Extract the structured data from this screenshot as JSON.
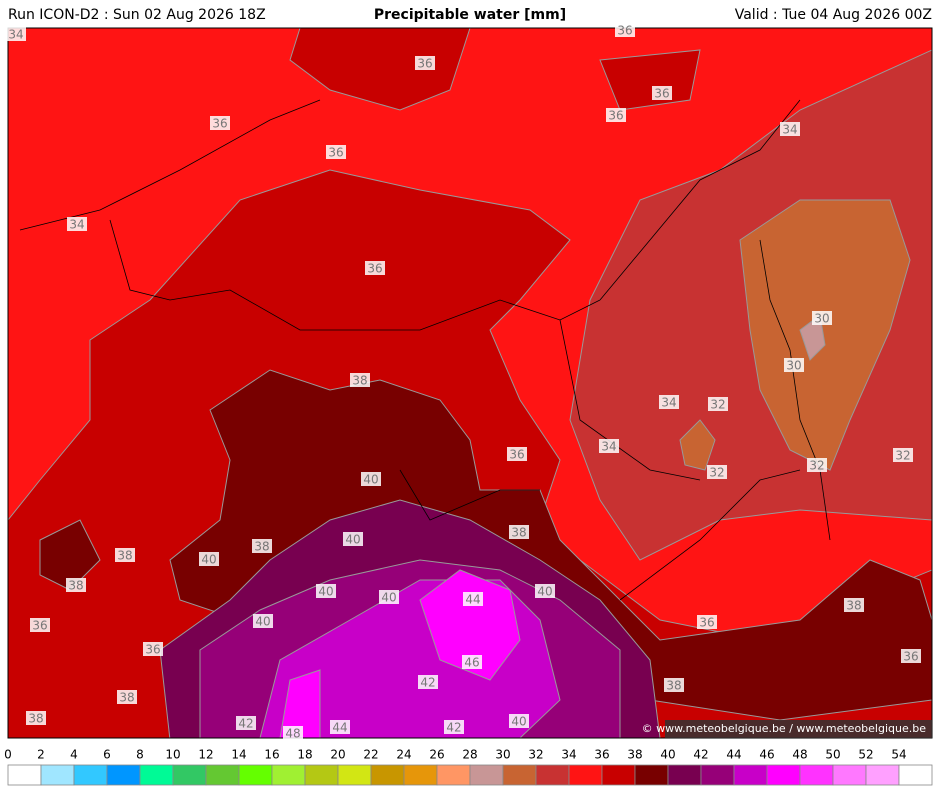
{
  "header": {
    "left": "Run ICON-D2 : Sun 02 Aug 2026 18Z",
    "title": "Precipitable water [mm]",
    "right": "Valid : Tue 04 Aug 2026 00Z"
  },
  "map": {
    "contour_labels": [
      "34",
      "36",
      "36",
      "36",
      "36",
      "36",
      "34",
      "36",
      "34",
      "36",
      "30",
      "30",
      "38",
      "34",
      "32",
      "34",
      "36",
      "32",
      "32",
      "32",
      "40",
      "38",
      "40",
      "38",
      "38",
      "40",
      "38",
      "40",
      "40",
      "40",
      "44",
      "38",
      "36",
      "40",
      "36",
      "36",
      "46",
      "36",
      "42",
      "38",
      "38",
      "38",
      "42",
      "44",
      "42",
      "40",
      "48"
    ],
    "credit": "© www.meteobelgique.be / www.meteobelgique.be"
  },
  "colorbar": {
    "ticks": [
      0,
      2,
      4,
      6,
      8,
      10,
      12,
      14,
      16,
      18,
      20,
      22,
      24,
      26,
      28,
      30,
      32,
      34,
      36,
      38,
      40,
      42,
      44,
      46,
      48,
      50,
      52,
      54
    ],
    "colors": [
      "#ffffff",
      "#a0e6ff",
      "#32c8ff",
      "#0096ff",
      "#00fa96",
      "#32c864",
      "#64c832",
      "#64ff00",
      "#a0f032",
      "#b4c814",
      "#d2e614",
      "#c89600",
      "#e6960a",
      "#ff9664",
      "#c89696",
      "#c86432",
      "#c83232",
      "#ff1414",
      "#c80000",
      "#780000",
      "#780050",
      "#960078",
      "#c800c8",
      "#ff00ff",
      "#ff32ff",
      "#ff78ff",
      "#ffa0ff",
      "#ffffff"
    ]
  }
}
